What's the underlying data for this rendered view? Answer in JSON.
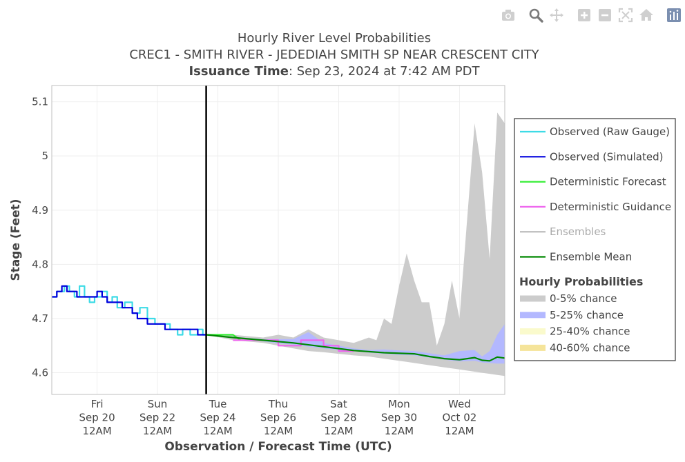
{
  "toolbar": {
    "icons": [
      "camera-icon",
      "zoom-icon",
      "pan-icon",
      "zoom-in-icon",
      "zoom-out-icon",
      "autoscale-icon",
      "reset-axes-icon",
      "plotly-logo-icon"
    ]
  },
  "chart_data": {
    "type": "line",
    "title": "Hourly River Level Probabilities",
    "subtitle": "CREC1 - SMITH RIVER - JEDEDIAH SMITH SP NEAR CRESCENT CITY",
    "issuance_label": "Issuance Time",
    "issuance_value": ": Sep 23, 2024 at 7:42 AM PDT",
    "xlabel": "Observation / Forecast Time (UTC)",
    "ylabel": "Stage (Feet)",
    "xlim": [
      "2024-09-18T12:00",
      "2024-10-03T12:00"
    ],
    "ylim": [
      4.56,
      5.13
    ],
    "yticks": [
      4.6,
      4.7,
      4.8,
      4.9,
      5,
      5.1
    ],
    "ytick_labels": [
      "4.6",
      "4.7",
      "4.8",
      "4.9",
      "5",
      "5.1"
    ],
    "xticks": [
      {
        "x": "2024-09-20T00:00",
        "label": [
          "Fri",
          "Sep 20",
          "12AM"
        ]
      },
      {
        "x": "2024-09-22T00:00",
        "label": [
          "Sun",
          "Sep 22",
          "12AM"
        ]
      },
      {
        "x": "2024-09-24T00:00",
        "label": [
          "Tue",
          "Sep 24",
          "12AM"
        ]
      },
      {
        "x": "2024-09-26T00:00",
        "label": [
          "Thu",
          "Sep 26",
          "12AM"
        ]
      },
      {
        "x": "2024-09-28T00:00",
        "label": [
          "Sat",
          "Sep 28",
          "12AM"
        ]
      },
      {
        "x": "2024-09-30T00:00",
        "label": [
          "Mon",
          "Sep 30",
          "12AM"
        ]
      },
      {
        "x": "2024-10-02T00:00",
        "label": [
          "Wed",
          "Oct 02",
          "12AM"
        ]
      }
    ],
    "issuance_time": "2024-09-23T14:42",
    "grid": true,
    "legend_position": "right",
    "legend_group_title": "Hourly Probabilities",
    "series": [
      {
        "name": "Observed (Raw Gauge)",
        "type": "line",
        "color": "#3ddbe6",
        "x": [
          "2024-09-18T12:00",
          "2024-09-18T16:00",
          "2024-09-18T22:00",
          "2024-09-19T02:00",
          "2024-09-19T06:00",
          "2024-09-19T10:00",
          "2024-09-19T14:00",
          "2024-09-19T18:00",
          "2024-09-19T22:00",
          "2024-09-20T04:00",
          "2024-09-20T08:00",
          "2024-09-20T12:00",
          "2024-09-20T16:00",
          "2024-09-20T22:00",
          "2024-09-21T04:00",
          "2024-09-21T10:00",
          "2024-09-21T16:00",
          "2024-09-21T22:00",
          "2024-09-22T04:00",
          "2024-09-22T10:00",
          "2024-09-22T16:00",
          "2024-09-22T20:00",
          "2024-09-23T02:00",
          "2024-09-23T08:00",
          "2024-09-23T12:00",
          "2024-09-23T14:42"
        ],
        "y": [
          4.74,
          4.75,
          4.76,
          4.75,
          4.74,
          4.76,
          4.74,
          4.73,
          4.74,
          4.75,
          4.73,
          4.74,
          4.72,
          4.73,
          4.71,
          4.72,
          4.7,
          4.69,
          4.69,
          4.68,
          4.67,
          4.68,
          4.67,
          4.68,
          4.67,
          4.67
        ]
      },
      {
        "name": "Observed (Simulated)",
        "type": "line",
        "color": "#0000dd",
        "x": [
          "2024-09-18T12:00",
          "2024-09-18T16:00",
          "2024-09-18T20:00",
          "2024-09-19T00:00",
          "2024-09-19T04:00",
          "2024-09-19T08:00",
          "2024-09-19T12:00",
          "2024-09-19T16:00",
          "2024-09-19T20:00",
          "2024-09-20T00:00",
          "2024-09-20T04:00",
          "2024-09-20T08:00",
          "2024-09-20T12:00",
          "2024-09-20T16:00",
          "2024-09-20T20:00",
          "2024-09-21T00:00",
          "2024-09-21T04:00",
          "2024-09-21T08:00",
          "2024-09-21T12:00",
          "2024-09-21T16:00",
          "2024-09-21T20:00",
          "2024-09-22T00:00",
          "2024-09-22T06:00",
          "2024-09-22T10:00",
          "2024-09-22T14:00",
          "2024-09-22T20:00",
          "2024-09-23T02:00",
          "2024-09-23T08:00",
          "2024-09-23T14:42"
        ],
        "y": [
          4.74,
          4.75,
          4.76,
          4.75,
          4.75,
          4.74,
          4.74,
          4.74,
          4.74,
          4.75,
          4.74,
          4.73,
          4.73,
          4.73,
          4.72,
          4.72,
          4.71,
          4.7,
          4.7,
          4.69,
          4.69,
          4.69,
          4.68,
          4.68,
          4.68,
          4.68,
          4.68,
          4.67,
          4.67
        ]
      },
      {
        "name": "Deterministic Forecast",
        "type": "line",
        "color": "#33ee33",
        "x": [
          "2024-09-23T14:42",
          "2024-09-24T00:00",
          "2024-09-24T12:00",
          "2024-09-24T18:00"
        ],
        "y": [
          4.67,
          4.67,
          4.67,
          4.66
        ]
      },
      {
        "name": "Deterministic Guidance",
        "type": "line",
        "color": "#ee66ee",
        "x": [
          "2024-09-24T12:00",
          "2024-09-25T00:00",
          "2024-09-25T12:00",
          "2024-09-25T18:00",
          "2024-09-26T00:00",
          "2024-09-26T12:00",
          "2024-09-26T18:00",
          "2024-09-27T00:00",
          "2024-09-27T12:00",
          "2024-09-27T18:00",
          "2024-09-28T00:00",
          "2024-09-28T12:00"
        ],
        "y": [
          4.66,
          4.66,
          4.66,
          4.66,
          4.65,
          4.65,
          4.66,
          4.66,
          4.65,
          4.65,
          4.64,
          4.64
        ]
      },
      {
        "name": "Ensembles",
        "type": "line",
        "color": "#bbbbbb",
        "legend_faded": true,
        "x": [],
        "y": []
      },
      {
        "name": "Ensemble Mean",
        "type": "line",
        "color": "#008800",
        "x": [
          "2024-09-23T14:42",
          "2024-09-24T12:00",
          "2024-09-25T12:00",
          "2024-09-26T12:00",
          "2024-09-27T12:00",
          "2024-09-28T12:00",
          "2024-09-29T12:00",
          "2024-09-30T12:00",
          "2024-10-01T00:00",
          "2024-10-01T12:00",
          "2024-10-02T00:00",
          "2024-10-02T12:00",
          "2024-10-02T18:00",
          "2024-10-03T00:00",
          "2024-10-03T06:00",
          "2024-10-03T12:00"
        ],
        "y": [
          4.67,
          4.665,
          4.66,
          4.655,
          4.648,
          4.641,
          4.637,
          4.635,
          4.63,
          4.626,
          4.624,
          4.628,
          4.623,
          4.622,
          4.629,
          4.627
        ]
      }
    ],
    "bands": [
      {
        "name": "0-5% chance",
        "color": "#cccccc",
        "x": [
          "2024-09-23T14:42",
          "2024-09-24T12:00",
          "2024-09-25T12:00",
          "2024-09-26T00:00",
          "2024-09-26T12:00",
          "2024-09-27T00:00",
          "2024-09-27T12:00",
          "2024-09-28T00:00",
          "2024-09-28T12:00",
          "2024-09-29T00:00",
          "2024-09-29T06:00",
          "2024-09-29T12:00",
          "2024-09-29T18:00",
          "2024-09-30T00:00",
          "2024-09-30T06:00",
          "2024-09-30T12:00",
          "2024-09-30T18:00",
          "2024-10-01T00:00",
          "2024-10-01T06:00",
          "2024-10-01T12:00",
          "2024-10-01T18:00",
          "2024-10-02T00:00",
          "2024-10-02T06:00",
          "2024-10-02T12:00",
          "2024-10-02T18:00",
          "2024-10-03T00:00",
          "2024-10-03T06:00",
          "2024-10-03T12:00"
        ],
        "hi": [
          4.67,
          4.67,
          4.665,
          4.67,
          4.665,
          4.68,
          4.665,
          4.66,
          4.655,
          4.665,
          4.66,
          4.7,
          4.69,
          4.76,
          4.82,
          4.77,
          4.73,
          4.73,
          4.65,
          4.69,
          4.77,
          4.7,
          4.88,
          5.06,
          4.97,
          4.81,
          5.08,
          5.06
        ],
        "lo": [
          4.67,
          4.66,
          4.655,
          4.65,
          4.645,
          4.64,
          4.638,
          4.635,
          4.632,
          4.63,
          4.628,
          4.626,
          4.624,
          4.622,
          4.62,
          4.618,
          4.616,
          4.614,
          4.612,
          4.61,
          4.608,
          4.606,
          4.604,
          4.602,
          4.6,
          4.598,
          4.596,
          4.594
        ]
      },
      {
        "name": "5-25% chance",
        "color": "#b3b8ff",
        "x": [
          "2024-09-23T14:42",
          "2024-09-25T12:00",
          "2024-09-26T00:00",
          "2024-09-26T12:00",
          "2024-09-27T00:00",
          "2024-09-27T12:00",
          "2024-09-28T00:00",
          "2024-09-28T12:00",
          "2024-09-29T00:00",
          "2024-09-29T12:00",
          "2024-09-30T00:00",
          "2024-09-30T12:00",
          "2024-10-01T00:00",
          "2024-10-01T12:00",
          "2024-10-02T00:00",
          "2024-10-02T12:00",
          "2024-10-02T18:00",
          "2024-10-03T00:00",
          "2024-10-03T06:00",
          "2024-10-03T12:00"
        ],
        "hi": [
          4.67,
          4.662,
          4.662,
          4.662,
          4.675,
          4.655,
          4.65,
          4.645,
          4.642,
          4.643,
          4.641,
          4.64,
          4.636,
          4.632,
          4.64,
          4.642,
          4.63,
          4.64,
          4.67,
          4.69
        ],
        "lo": [
          4.67,
          4.658,
          4.654,
          4.652,
          4.648,
          4.645,
          4.642,
          4.64,
          4.637,
          4.635,
          4.633,
          4.632,
          4.628,
          4.624,
          4.621,
          4.622,
          4.619,
          4.618,
          4.617,
          4.617
        ]
      },
      {
        "name": "25-40% chance",
        "color": "#fafacc",
        "x": [],
        "hi": [],
        "lo": []
      },
      {
        "name": "40-60% chance",
        "color": "#f5e49a",
        "x": [],
        "hi": [],
        "lo": []
      }
    ]
  }
}
